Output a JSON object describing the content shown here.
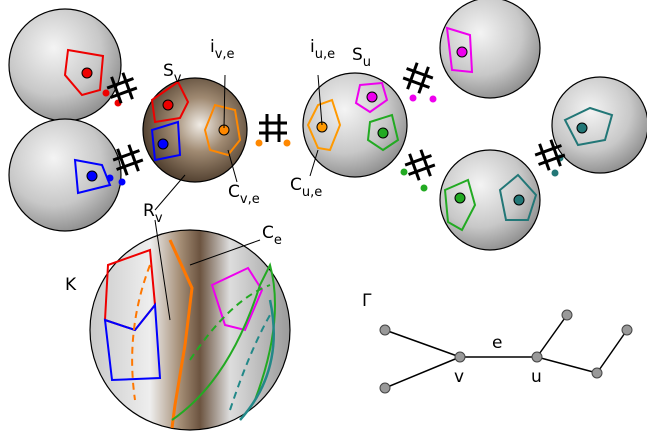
{
  "labels": {
    "s_v": {
      "main": "S",
      "sub": "v"
    },
    "i_ve": {
      "main": "i",
      "sub": "v,e"
    },
    "i_ue": {
      "main": "i",
      "sub": "u,e"
    },
    "s_u": {
      "main": "S",
      "sub": "u"
    },
    "c_ve": {
      "main": "C",
      "sub": "v,e"
    },
    "c_ue": {
      "main": "C",
      "sub": "u,e"
    },
    "r_v": {
      "main": "R",
      "sub": "v"
    },
    "c_e": {
      "main": "C",
      "sub": "e"
    },
    "k": "K"
  },
  "graph": {
    "title": "Γ",
    "edge": "e",
    "node_v": "v",
    "node_u": "u"
  }
}
